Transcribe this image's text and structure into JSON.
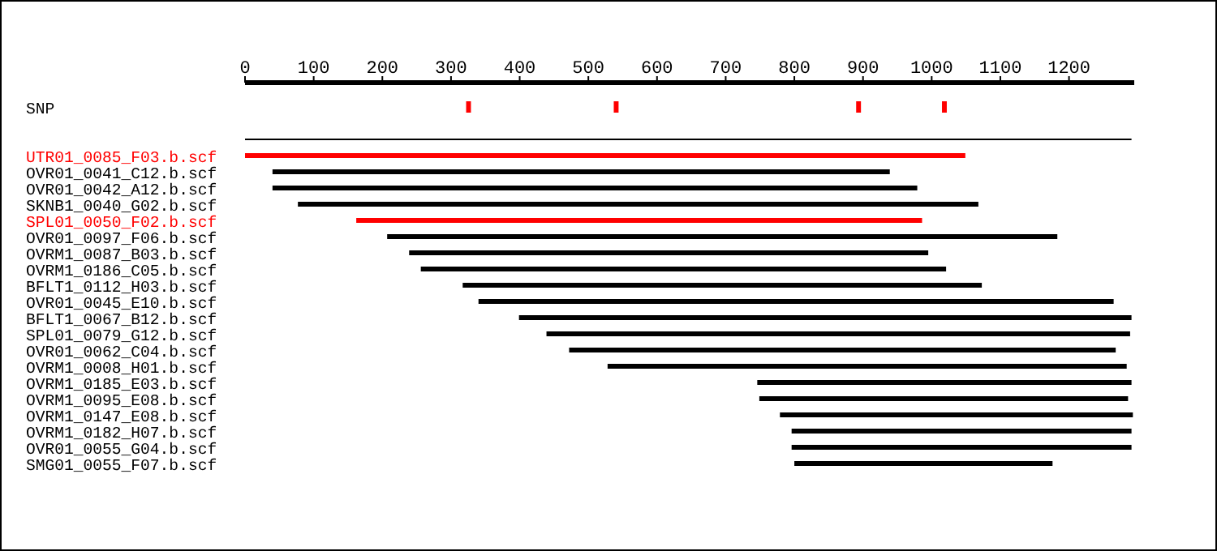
{
  "chart_data": {
    "type": "bar",
    "orientation": "horizontal",
    "categories": [
      null,
      "SNP",
      null,
      null,
      "UTR01_0085_F03.b.scf",
      "OVR01_0041_C12.b.scf",
      "OVR01_0042_A12.b.scf",
      "SKNB1_0040_G02.b.scf",
      "SPL01_0050_F02.b.scf",
      "OVR01_0097_F06.b.scf",
      "OVRM1_0087_B03.b.scf",
      "OVRM1_0186_C05.b.scf",
      "BFLT1_0112_H03.b.scf",
      "OVR01_0045_E10.b.scf",
      "BFLT1_0067_B12.b.scf",
      "SPL01_0079_G12.b.scf",
      "OVR01_0062_C04.b.scf",
      "OVRM1_0008_H01.b.scf",
      "OVRM1_0185_E03.b.scf",
      "OVRM1_0095_E08.b.scf",
      "OVRM1_0147_E08.b.scf",
      "OVRM1_0182_H07.b.scf",
      "OVR01_0055_G04.b.scf",
      "SMG01_0055_F07.b.scf"
    ],
    "xlim": [
      0,
      1295
    ],
    "xticks": [
      0,
      100,
      200,
      300,
      400,
      500,
      600,
      700,
      800,
      900,
      1000,
      1100,
      1200
    ],
    "series": [
      {
        "values": [
          null,
          null,
          null,
          1291,
          1049,
          899,
          939,
          991,
          824,
          976,
          756,
          765,
          756,
          925,
          892,
          850,
          796,
          756,
          545,
          537,
          514,
          495,
          495,
          376
        ],
        "base": [
          null,
          null,
          null,
          0,
          0,
          40,
          40,
          77,
          162,
          207,
          239,
          256,
          317,
          340,
          399,
          439,
          472,
          528,
          746,
          749,
          779,
          796,
          796,
          800
        ],
        "colors": [
          null,
          null,
          null,
          "#000000",
          "#ff0000",
          "#000000",
          "#000000",
          "#000000",
          "#ff0000",
          "#000000",
          "#000000",
          "#000000",
          "#000000",
          "#000000",
          "#000000",
          "#000000",
          "#000000",
          "#000000",
          "#000000",
          "#000000",
          "#000000",
          "#000000",
          "#000000",
          "#000000"
        ]
      },
      {
        "color": "#ff0000",
        "values": [
          null,
          7,
          null,
          null,
          null,
          null,
          null,
          null,
          null,
          null,
          null,
          null,
          null,
          null,
          null,
          null,
          null,
          null,
          null,
          null,
          null,
          null,
          null,
          null
        ],
        "base": [
          null,
          322,
          null,
          null,
          null,
          null,
          null,
          null,
          null,
          null,
          null,
          null,
          null,
          null,
          null,
          null,
          null,
          null,
          null,
          null,
          null,
          null,
          null,
          null
        ]
      },
      {
        "color": "#ff0000",
        "values": [
          null,
          7,
          null,
          null,
          null,
          null,
          null,
          null,
          null,
          null,
          null,
          null,
          null,
          null,
          null,
          null,
          null,
          null,
          null,
          null,
          null,
          null,
          null,
          null
        ],
        "base": [
          null,
          537,
          null,
          null,
          null,
          null,
          null,
          null,
          null,
          null,
          null,
          null,
          null,
          null,
          null,
          null,
          null,
          null,
          null,
          null,
          null,
          null,
          null,
          null
        ]
      },
      {
        "color": "#ff0000",
        "values": [
          null,
          7,
          null,
          null,
          null,
          null,
          null,
          null,
          null,
          null,
          null,
          null,
          null,
          null,
          null,
          null,
          null,
          null,
          null,
          null,
          null,
          null,
          null,
          null
        ],
        "base": [
          null,
          890,
          null,
          null,
          null,
          null,
          null,
          null,
          null,
          null,
          null,
          null,
          null,
          null,
          null,
          null,
          null,
          null,
          null,
          null,
          null,
          null,
          null,
          null
        ]
      },
      {
        "color": "#ff0000",
        "values": [
          null,
          7,
          null,
          null,
          null,
          null,
          null,
          null,
          null,
          null,
          null,
          null,
          null,
          null,
          null,
          null,
          null,
          null,
          null,
          null,
          null,
          null,
          null,
          null
        ],
        "base": [
          null,
          1015,
          null,
          null,
          null,
          null,
          null,
          null,
          null,
          null,
          null,
          null,
          null,
          null,
          null,
          null,
          null,
          null,
          null,
          null,
          null,
          null,
          null,
          null
        ]
      }
    ]
  }
}
